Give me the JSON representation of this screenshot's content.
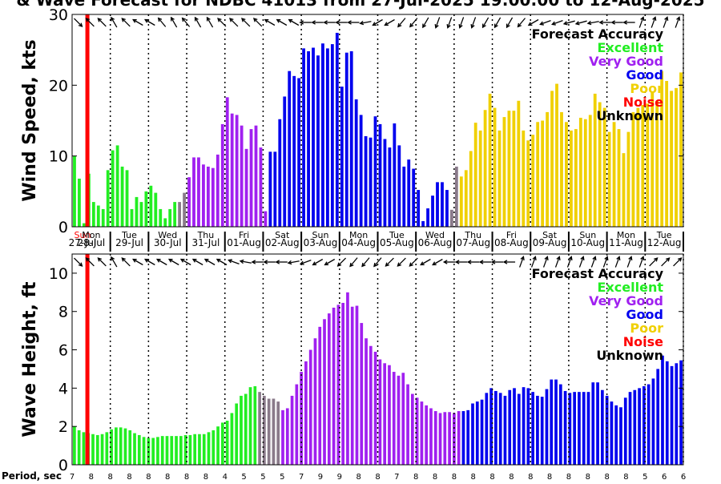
{
  "title": "& Wave Forecast for NDBC 41013 from 27-Jul-2025 19:00:00 to 12-Aug-2025",
  "colors": {
    "excellent": "#22ee22",
    "very_good": "#a020f0",
    "good": "#0000ee",
    "poor": "#f0d000",
    "noise": "#ff0000",
    "unknown": "#000000",
    "transition": "#8a7a8a"
  },
  "legend": {
    "title": "Forecast Accuracy",
    "items": [
      {
        "key": "excellent",
        "label": "Excellent"
      },
      {
        "key": "very_good",
        "label": "Very Good"
      },
      {
        "key": "good",
        "label": "Good"
      },
      {
        "key": "poor",
        "label": "Poor"
      },
      {
        "key": "noise",
        "label": "Noise"
      },
      {
        "key": "unknown",
        "label": "Unknown"
      }
    ]
  },
  "day_labels": [
    {
      "dow": "Sun",
      "date": "27-Jul",
      "x": 0.25,
      "dow_color": "noise"
    },
    {
      "dow": "Mon",
      "date": "28-Jul",
      "x": 1.5
    },
    {
      "dow": "Tue",
      "date": "29-Jul",
      "x": 4.5
    },
    {
      "dow": "Wed",
      "date": "30-Jul",
      "x": 7.5
    },
    {
      "dow": "Thu",
      "date": "31-Jul",
      "x": 10.5
    },
    {
      "dow": "Fri",
      "date": "01-Aug",
      "x": 13.5
    },
    {
      "dow": "Sat",
      "date": "02-Aug",
      "x": 16.5
    },
    {
      "dow": "Sun",
      "date": "03-Aug",
      "x": 19.5
    },
    {
      "dow": "Mon",
      "date": "04-Aug",
      "x": 22.5
    },
    {
      "dow": "Tue",
      "date": "05-Aug",
      "x": 25.5
    },
    {
      "dow": "Wed",
      "date": "06-Aug",
      "x": 28.5
    },
    {
      "dow": "Thu",
      "date": "07-Aug",
      "x": 31.5
    },
    {
      "dow": "Fri",
      "date": "08-Aug",
      "x": 34.5
    },
    {
      "dow": "Sat",
      "date": "09-Aug",
      "x": 37.5
    },
    {
      "dow": "Sun",
      "date": "10-Aug",
      "x": 40.5
    },
    {
      "dow": "Mon",
      "date": "11-Aug",
      "x": 43.5
    },
    {
      "dow": "Tue",
      "date": "12-Aug",
      "x": 46.5
    }
  ],
  "period_label": "Period, sec",
  "period_values": [
    {
      "x": 0,
      "text": "7"
    },
    {
      "x": 1.5,
      "text": "8"
    },
    {
      "x": 3,
      "text": "8"
    },
    {
      "x": 4.5,
      "text": "8"
    },
    {
      "x": 6,
      "text": "8"
    },
    {
      "x": 7.5,
      "text": "8"
    },
    {
      "x": 9,
      "text": "8"
    },
    {
      "x": 10.5,
      "text": "8"
    },
    {
      "x": 12,
      "text": "4"
    },
    {
      "x": 13.5,
      "text": "5"
    },
    {
      "x": 15,
      "text": "5"
    },
    {
      "x": 16.5,
      "text": "5"
    },
    {
      "x": 18,
      "text": "7"
    },
    {
      "x": 19.5,
      "text": "9"
    },
    {
      "x": 21,
      "text": "9"
    },
    {
      "x": 22.5,
      "text": "8"
    },
    {
      "x": 24,
      "text": "8"
    },
    {
      "x": 25.5,
      "text": "7"
    },
    {
      "x": 27,
      "text": "8"
    },
    {
      "x": 28.5,
      "text": "8"
    },
    {
      "x": 30,
      "text": "8"
    },
    {
      "x": 31.5,
      "text": "8"
    },
    {
      "x": 33,
      "text": "8"
    },
    {
      "x": 34.5,
      "text": "8"
    },
    {
      "x": 36,
      "text": "8"
    },
    {
      "x": 37.5,
      "text": "8"
    },
    {
      "x": 39,
      "text": "8"
    },
    {
      "x": 40.5,
      "text": "8"
    },
    {
      "x": 42,
      "text": "8"
    },
    {
      "x": 43.5,
      "text": "8"
    },
    {
      "x": 45,
      "text": "5"
    },
    {
      "x": 46.5,
      "text": "6"
    },
    {
      "x": 48,
      "text": "6"
    }
  ],
  "chart_data": [
    {
      "type": "bar",
      "ylabel": "Wind Speed, kts",
      "ylim": [
        0,
        30
      ],
      "yticks": [
        0,
        10,
        20,
        30
      ],
      "xlim": [
        0,
        48
      ],
      "grid": "dotted vertical lines at 00:00 each day",
      "now_marker_x": 0.4,
      "legend_position": "top-right",
      "values": [
        10.0,
        6.8,
        0.5,
        7.5,
        3.5,
        3.0,
        2.5,
        8.0,
        10.8,
        11.5,
        8.5,
        8.0,
        2.5,
        4.2,
        3.5,
        5.0,
        5.8,
        4.8,
        2.5,
        1.2,
        2.5,
        3.5,
        3.5,
        4.8,
        7.0,
        9.8,
        9.8,
        8.8,
        8.5,
        8.3,
        10.2,
        14.5,
        18.3,
        16.0,
        15.8,
        14.3,
        11.0,
        13.8,
        14.3,
        11.2,
        2.2,
        10.6,
        10.6,
        15.2,
        18.4,
        22.0,
        21.3,
        21.0,
        25.2,
        24.8,
        25.3,
        24.2,
        25.9,
        25.2,
        25.8,
        27.4,
        19.8,
        24.6,
        24.8,
        18.0,
        15.8,
        12.8,
        12.6,
        15.6,
        14.5,
        12.4,
        11.2,
        14.6,
        11.5,
        8.5,
        9.5,
        8.2,
        5.2,
        0.8,
        2.6,
        4.4,
        6.3,
        6.3,
        5.2,
        2.4,
        8.5,
        7.1,
        8.0,
        10.7,
        14.7,
        13.6,
        16.5,
        18.8,
        16.8,
        13.6,
        15.5,
        16.4,
        16.4,
        17.8,
        13.6,
        12.2,
        13.0,
        14.8,
        15.0,
        16.2,
        19.2,
        20.2,
        16.2,
        14.8,
        13.6,
        13.8,
        15.4,
        15.2,
        15.8,
        18.8,
        17.6,
        16.8,
        13.4,
        14.8,
        13.8,
        10.4,
        13.4,
        16.2,
        16.8,
        17.2,
        17.4,
        19.0,
        17.8,
        22.0,
        20.6,
        19.2,
        19.6,
        21.8
      ],
      "categories_by_index": "bar i spans x = i/3 to (i+1)/3 (3 bars per 24h, axis in hours/3)"
    },
    {
      "type": "bar",
      "ylabel": "Wave Height, ft",
      "ylim": [
        0,
        11
      ],
      "yticks": [
        0,
        2,
        4,
        6,
        8,
        10
      ],
      "xlim": [
        0,
        48
      ],
      "grid": "dotted vertical lines at 00:00 each day",
      "now_marker_x": 0.4,
      "legend_position": "top-right",
      "values": [
        2.0,
        1.8,
        1.7,
        1.65,
        1.6,
        1.55,
        1.6,
        1.7,
        1.85,
        1.95,
        1.95,
        1.9,
        1.8,
        1.65,
        1.55,
        1.45,
        1.4,
        1.4,
        1.45,
        1.5,
        1.5,
        1.5,
        1.5,
        1.5,
        1.55,
        1.55,
        1.6,
        1.6,
        1.6,
        1.7,
        1.8,
        2.0,
        2.2,
        2.3,
        2.7,
        3.2,
        3.6,
        3.7,
        4.05,
        4.1,
        3.8,
        3.6,
        3.45,
        3.45,
        3.3,
        2.85,
        2.95,
        3.6,
        4.2,
        4.85,
        5.4,
        6.0,
        6.6,
        7.2,
        7.6,
        7.9,
        8.2,
        8.35,
        8.45,
        9.0,
        8.25,
        8.3,
        7.4,
        6.6,
        6.2,
        5.9,
        5.5,
        5.3,
        5.2,
        4.85,
        4.65,
        4.8,
        4.2,
        3.7,
        3.5,
        3.3,
        3.1,
        2.95,
        2.8,
        2.7,
        2.75,
        2.75,
        2.7,
        2.8,
        2.8,
        2.85,
        3.2,
        3.3,
        3.4,
        3.75,
        4.0,
        3.85,
        3.75,
        3.6,
        3.9,
        4.0,
        3.7,
        4.05,
        4.0,
        3.8,
        3.6,
        3.55,
        3.95,
        4.45,
        4.45,
        4.2,
        3.85,
        3.75,
        3.8,
        3.8,
        3.8,
        3.8,
        4.3,
        4.3,
        3.9,
        3.6,
        3.3,
        3.1,
        3.0,
        3.5,
        3.8,
        3.9,
        4.0,
        4.1,
        4.2,
        4.5,
        5.0,
        5.7,
        5.4,
        5.15,
        5.3,
        5.45
      ]
    }
  ],
  "wind_dirs_deg": [
    135,
    315,
    315,
    330,
    315,
    300,
    300,
    320,
    330,
    320,
    330,
    330,
    315,
    315,
    315,
    315,
    300,
    300,
    300,
    270,
    270,
    270,
    270,
    270,
    260,
    240,
    240,
    220,
    220,
    210,
    200,
    200,
    200,
    200,
    210,
    210,
    210,
    220,
    240,
    250,
    250,
    255,
    255,
    260,
    270,
    270,
    270,
    20,
    20,
    20,
    20
  ],
  "wave_dirs_deg": [
    135,
    315,
    315,
    330,
    315,
    300,
    300,
    300,
    300,
    300,
    300,
    300,
    300,
    290,
    280,
    270,
    270,
    270,
    260,
    250,
    240,
    240,
    225,
    220,
    220,
    220,
    225,
    225,
    225,
    240,
    240,
    270,
    270,
    270,
    270,
    270,
    270,
    20,
    20,
    20,
    20,
    20,
    20,
    20,
    20,
    20,
    20,
    20,
    45,
    45,
    45
  ]
}
